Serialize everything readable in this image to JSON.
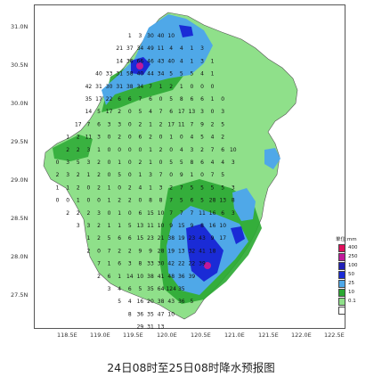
{
  "caption": "24日08时至25日08时降水预报图",
  "legend": {
    "title": "单位:mm",
    "entries": [
      {
        "value": "400",
        "color": "#e0105c"
      },
      {
        "value": "250",
        "color": "#c01a9a"
      },
      {
        "value": "100",
        "color": "#2020b8"
      },
      {
        "value": "50",
        "color": "#1a2bd6"
      },
      {
        "value": "25",
        "color": "#4fa8e8"
      },
      {
        "value": "10",
        "color": "#2aa832"
      },
      {
        "value": "0.1",
        "color": "#8fe08a"
      }
    ]
  },
  "lat_ticks": [
    "31.0N",
    "30.5N",
    "30.0N",
    "29.5N",
    "29.0N",
    "28.5N",
    "28.0N",
    "27.5N"
  ],
  "lon_ticks": [
    "118.5E",
    "119.0E",
    "119.5E",
    "120.0E",
    "120.5E",
    "121.0E",
    "121.5E",
    "122.0E",
    "122.5E"
  ],
  "grid_values": [
    [
      "",
      "",
      "",
      "",
      "",
      "",
      "",
      "",
      "1",
      "3",
      "30",
      "40",
      "10",
      "",
      "",
      "",
      "",
      "",
      "",
      "",
      "",
      "",
      ""
    ],
    [
      "",
      "",
      "",
      "",
      "",
      "",
      "",
      "21",
      "37",
      "34",
      "49",
      "11",
      "4",
      "4",
      "1",
      "3",
      "",
      "",
      "",
      "",
      "",
      "",
      ""
    ],
    [
      "",
      "",
      "",
      "",
      "",
      "",
      "",
      "14",
      "36",
      "66",
      "46",
      "43",
      "40",
      "4",
      "1",
      "3",
      "1",
      "",
      "",
      "",
      "",
      "",
      ""
    ],
    [
      "",
      "",
      "",
      "",
      "",
      "40",
      "33",
      "31",
      "58",
      "40",
      "44",
      "34",
      "5",
      "5",
      "5",
      "4",
      "1",
      "",
      "",
      "",
      "",
      "",
      ""
    ],
    [
      "",
      "",
      "",
      "",
      "42",
      "31",
      "30",
      "31",
      "38",
      "34",
      "7",
      "1",
      "2",
      "1",
      "0",
      "0",
      "0",
      "",
      "",
      "",
      "",
      "",
      ""
    ],
    [
      "",
      "",
      "",
      "",
      "35",
      "17",
      "22",
      "6",
      "6",
      "7",
      "6",
      "0",
      "5",
      "8",
      "6",
      "6",
      "1",
      "0",
      "",
      "",
      "",
      "",
      ""
    ],
    [
      "",
      "",
      "",
      "",
      "14",
      "5",
      "17",
      "2",
      "0",
      "5",
      "4",
      "7",
      "6",
      "17",
      "13",
      "3",
      "0",
      "3",
      "",
      "",
      "",
      "",
      ""
    ],
    [
      "",
      "",
      "",
      "17",
      "7",
      "6",
      "3",
      "3",
      "0",
      "2",
      "1",
      "2",
      "17",
      "11",
      "7",
      "9",
      "2",
      "5",
      "",
      "",
      "",
      "",
      ""
    ],
    [
      "",
      "",
      "1",
      "2",
      "11",
      "3",
      "0",
      "2",
      "0",
      "6",
      "2",
      "0",
      "1",
      "0",
      "4",
      "5",
      "4",
      "2",
      "",
      "",
      "",
      "",
      ""
    ],
    [
      "",
      "",
      "2",
      "2",
      "3",
      "1",
      "0",
      "0",
      "0",
      "0",
      "1",
      "2",
      "0",
      "4",
      "3",
      "2",
      "7",
      "6",
      "10",
      "",
      "",
      "",
      ""
    ],
    [
      "",
      "0",
      "3",
      "5",
      "3",
      "2",
      "0",
      "1",
      "0",
      "2",
      "1",
      "0",
      "5",
      "5",
      "8",
      "6",
      "4",
      "4",
      "3",
      "",
      "",
      "",
      ""
    ],
    [
      "",
      "2",
      "3",
      "2",
      "1",
      "2",
      "0",
      "5",
      "0",
      "1",
      "3",
      "7",
      "0",
      "9",
      "1",
      "0",
      "7",
      "5",
      "",
      "",
      "",
      "",
      ""
    ],
    [
      "",
      "1",
      "1",
      "2",
      "0",
      "2",
      "1",
      "0",
      "2",
      "4",
      "1",
      "3",
      "2",
      "7",
      "5",
      "5",
      "5",
      "5",
      "3",
      "",
      "",
      "",
      ""
    ],
    [
      "",
      "0",
      "0",
      "1",
      "0",
      "0",
      "1",
      "2",
      "2",
      "0",
      "8",
      "8",
      "7",
      "5",
      "6",
      "5",
      "28",
      "13",
      "8",
      "",
      "",
      "",
      ""
    ],
    [
      "",
      "",
      "2",
      "2",
      "2",
      "3",
      "0",
      "1",
      "0",
      "6",
      "15",
      "10",
      "7",
      "7",
      "7",
      "11",
      "16",
      "6",
      "3",
      "",
      "",
      "",
      ""
    ],
    [
      "",
      "",
      "",
      "3",
      "3",
      "2",
      "1",
      "1",
      "5",
      "13",
      "11",
      "10",
      "9",
      "15",
      "9",
      "8",
      "16",
      "10",
      "",
      "",
      "",
      "",
      ""
    ],
    [
      "",
      "",
      "",
      "",
      "1",
      "2",
      "5",
      "6",
      "6",
      "15",
      "23",
      "21",
      "38",
      "19",
      "23",
      "43",
      "9",
      "17",
      "",
      "",
      "",
      "",
      ""
    ],
    [
      "",
      "",
      "",
      "",
      "2",
      "0",
      "7",
      "2",
      "2",
      "9",
      "9",
      "28",
      "19",
      "13",
      "32",
      "41",
      "18",
      "",
      "",
      "",
      "",
      "",
      ""
    ],
    [
      "",
      "",
      "",
      "",
      "",
      "7",
      "1",
      "6",
      "3",
      "8",
      "33",
      "30",
      "42",
      "22",
      "22",
      "39",
      "",
      "",
      "",
      "",
      "",
      "",
      ""
    ],
    [
      "",
      "",
      "",
      "",
      "",
      "2",
      "6",
      "1",
      "14",
      "10",
      "38",
      "41",
      "48",
      "36",
      "39",
      "",
      "",
      "",
      "",
      "",
      "",
      "",
      ""
    ],
    [
      "",
      "",
      "",
      "",
      "",
      "",
      "3",
      "4",
      "6",
      "5",
      "35",
      "64",
      "124",
      "35",
      "",
      "",
      "",
      "",
      "",
      "",
      "",
      "",
      ""
    ],
    [
      "",
      "",
      "",
      "",
      "",
      "",
      "",
      "5",
      "4",
      "16",
      "20",
      "38",
      "43",
      "36",
      "5",
      "",
      "",
      "",
      "",
      "",
      "",
      "",
      ""
    ],
    [
      "",
      "",
      "",
      "",
      "",
      "",
      "",
      "",
      "8",
      "36",
      "35",
      "47",
      "10",
      "",
      "",
      "",
      "",
      "",
      "",
      "",
      "",
      "",
      ""
    ],
    [
      "",
      "",
      "",
      "",
      "",
      "",
      "",
      "",
      "",
      "29",
      "31",
      "13",
      "",
      "",
      "",
      "",
      "",
      "",
      "",
      "",
      "",
      "",
      ""
    ]
  ]
}
